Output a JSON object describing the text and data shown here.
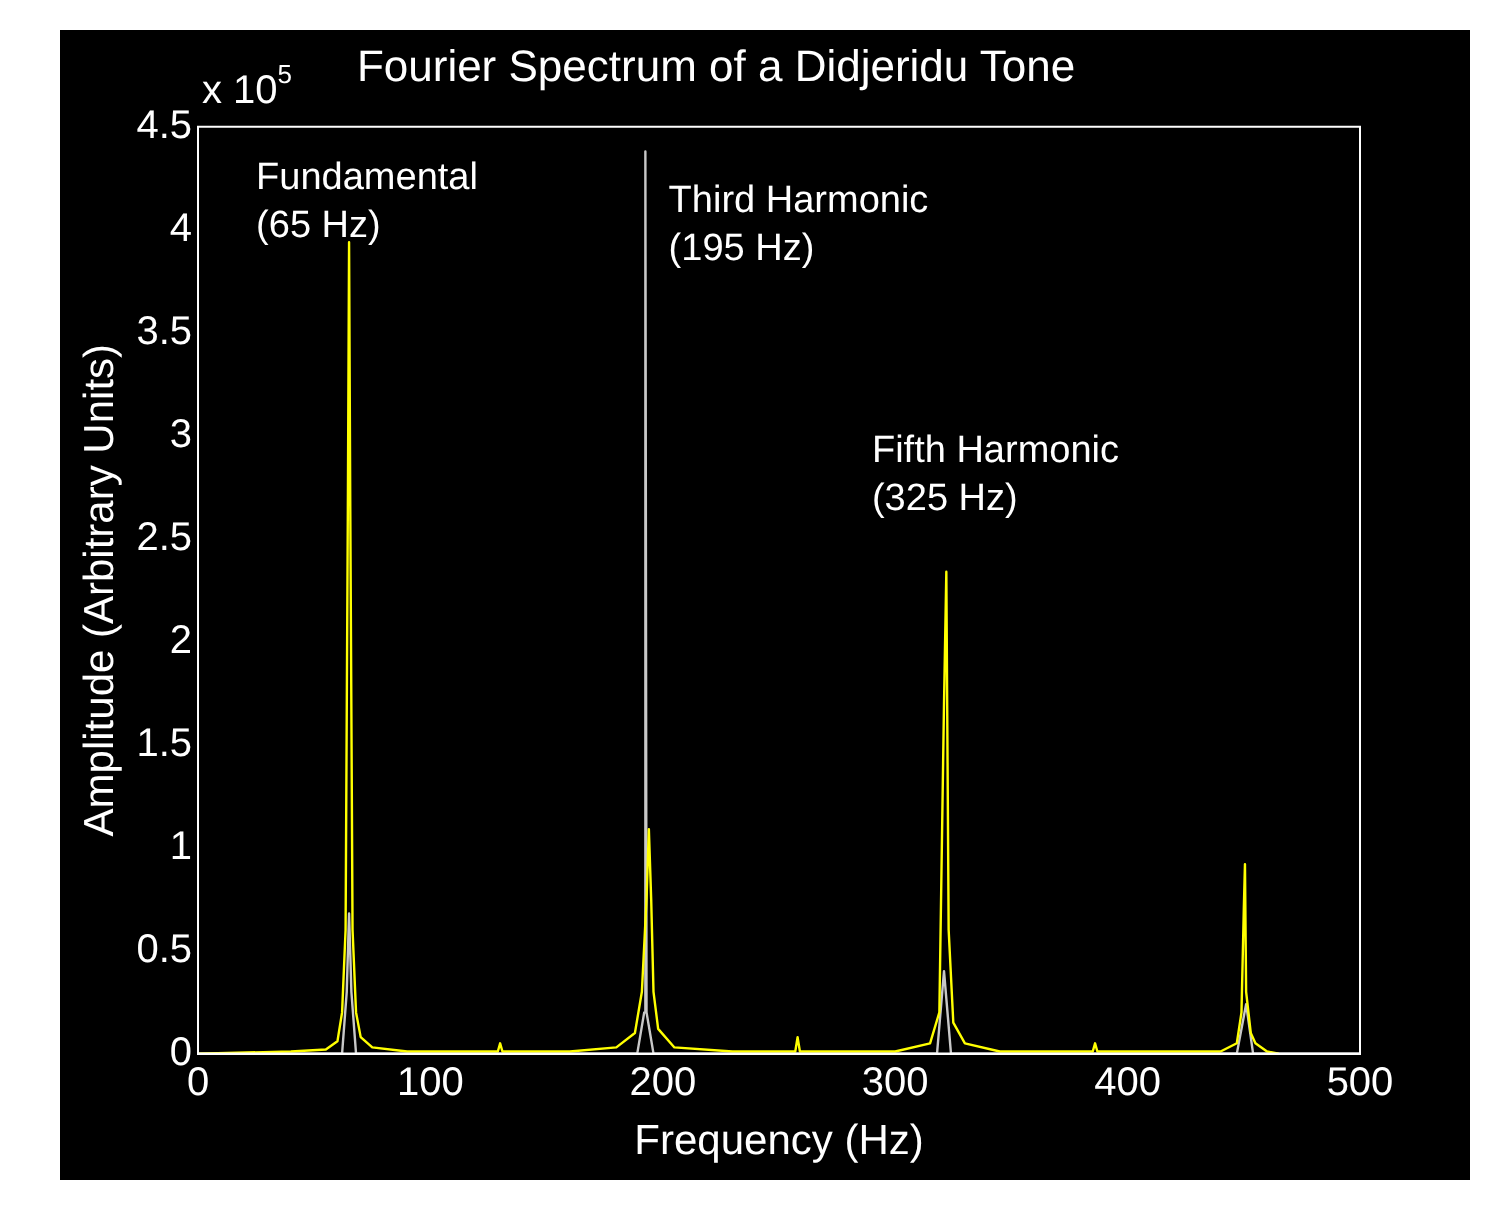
{
  "chart_data": {
    "type": "line",
    "title": "Fourier Spectrum of a Didjeridu Tone",
    "xlabel": "Frequency (Hz)",
    "ylabel": "Amplitude (Arbitrary Units)",
    "xlim": [
      0,
      500
    ],
    "xticks": [
      0,
      100,
      200,
      300,
      400,
      500
    ],
    "ylim": [
      0,
      4.5
    ],
    "yticks": [
      0,
      0.5,
      1,
      1.5,
      2,
      2.5,
      3,
      3.5,
      4,
      4.5
    ],
    "grid": false,
    "legend": false,
    "marker": "none",
    "line_style": "solid",
    "series": [
      {
        "color": "#c8c8c8",
        "x": [
          0,
          62,
          64,
          65,
          66,
          68,
          189,
          192,
          192.5,
          193,
          196,
          318,
          321,
          324,
          447,
          451,
          454,
          500
        ],
        "values": [
          0,
          0,
          0.3,
          0.68,
          0.3,
          0,
          0,
          0.2,
          4.38,
          0.2,
          0,
          0,
          0.4,
          0,
          0,
          0.24,
          0,
          0
        ]
      },
      {
        "color": "#ffff00",
        "x": [
          0,
          40,
          55,
          60,
          62,
          63.5,
          64.5,
          65,
          65.5,
          66.5,
          68,
          70,
          75,
          90,
          110,
          129,
          130,
          131,
          160,
          180,
          188,
          191,
          193,
          194,
          195,
          196,
          198,
          205,
          230,
          257,
          258,
          259,
          300,
          315,
          319,
          321,
          322,
          323,
          325,
          330,
          345,
          385,
          386,
          387,
          440,
          447,
          449,
          450,
          450.5,
          451,
          453,
          455,
          460,
          465
        ],
        "values": [
          0,
          0.01,
          0.02,
          0.06,
          0.2,
          0.6,
          2.7,
          3.94,
          2.7,
          0.6,
          0.2,
          0.08,
          0.03,
          0.01,
          0.01,
          0.01,
          0.05,
          0.01,
          0.01,
          0.03,
          0.1,
          0.3,
          0.75,
          1.09,
          0.75,
          0.3,
          0.12,
          0.03,
          0.01,
          0.01,
          0.08,
          0.01,
          0.01,
          0.05,
          0.2,
          1.7,
          2.34,
          0.6,
          0.15,
          0.05,
          0.01,
          0.01,
          0.05,
          0.01,
          0.01,
          0.05,
          0.2,
          0.7,
          0.92,
          0.3,
          0.1,
          0.05,
          0.01,
          0
        ]
      }
    ],
    "annotations": [
      "x 10$^{5}$",
      "Fundamental\n(65 Hz)",
      "Third Harmonic\n(195 Hz)",
      "Fifth Harmonic\n(325 Hz)"
    ]
  }
}
